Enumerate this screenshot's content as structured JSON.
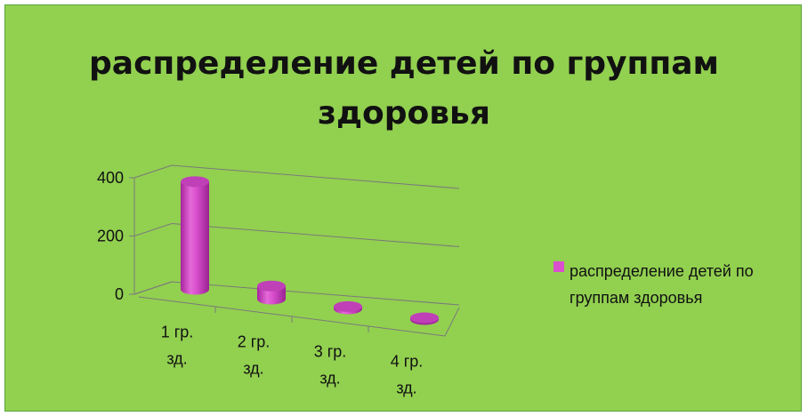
{
  "chart_data": {
    "type": "bar",
    "title": "распределение детей по группам здоровья",
    "categories": [
      [
        "1 гр.",
        "зд."
      ],
      [
        "2 гр.",
        "зд."
      ],
      [
        "3 гр.",
        "зд."
      ],
      [
        "4 гр.",
        "зд."
      ]
    ],
    "series": [
      {
        "name": "распределение детей по группам здоровья",
        "values": [
          370,
          45,
          8,
          3
        ]
      }
    ],
    "y_ticks": [
      "0",
      "200",
      "400"
    ],
    "ylim": [
      0,
      400
    ],
    "grid": true,
    "legend_position": "right",
    "colors": {
      "background": "#92d050",
      "bar": "#d94fce",
      "bar_dark": "#a22a9c",
      "bar_top": "#c040b8",
      "gridline": "#7a7a7a"
    }
  }
}
